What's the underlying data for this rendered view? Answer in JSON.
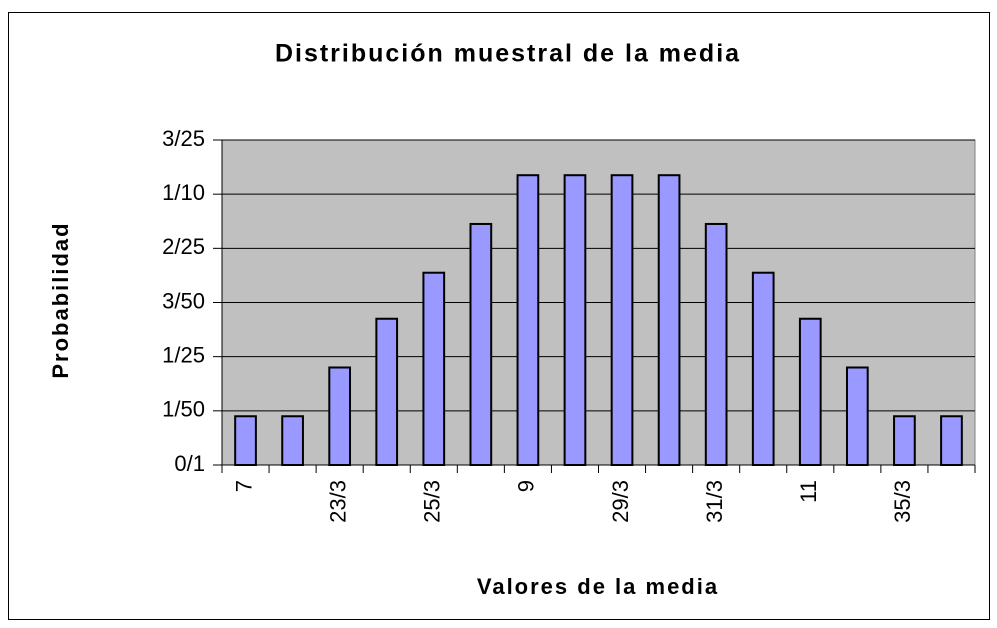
{
  "chart_data": {
    "type": "bar",
    "title": "Distribución muestral de la media",
    "x_label": "Valores de la media",
    "y_label": "Probabilidad",
    "categories": [
      "7",
      null,
      "23/3",
      null,
      "25/3",
      null,
      "9",
      null,
      "29/3",
      null,
      "31/3",
      null,
      "11",
      null,
      "35/3",
      null
    ],
    "values": [
      0.018,
      0.018,
      0.036,
      0.054,
      0.071,
      0.089,
      0.107,
      0.107,
      0.107,
      0.107,
      0.089,
      0.071,
      0.054,
      0.036,
      0.018,
      0.018
    ],
    "color": "#9999ff",
    "ylim": [
      0,
      0.12
    ],
    "yticks": [
      {
        "value": 0,
        "label": "0/1"
      },
      {
        "value": 0.02,
        "label": "1/50"
      },
      {
        "value": 0.04,
        "label": "1/25"
      },
      {
        "value": 0.06,
        "label": "3/50"
      },
      {
        "value": 0.08,
        "label": "2/25"
      },
      {
        "value": 0.1,
        "label": "1/10"
      },
      {
        "value": 0.12,
        "label": "3/25"
      }
    ],
    "grid": true
  }
}
